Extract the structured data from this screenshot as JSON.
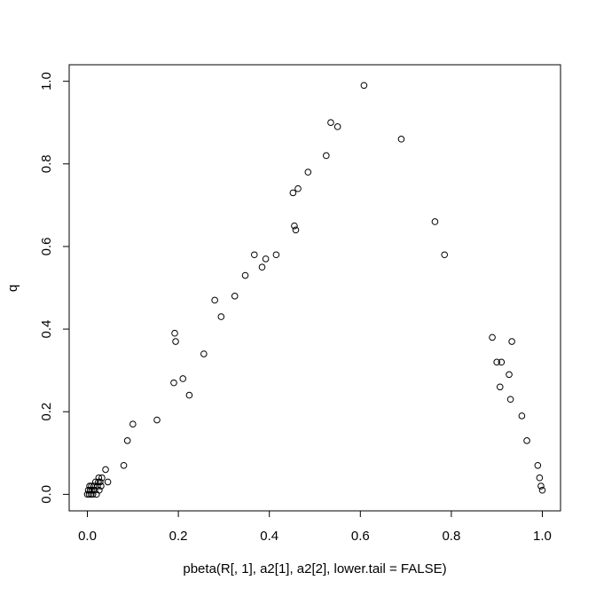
{
  "chart_data": {
    "type": "scatter",
    "title": "",
    "xlabel": "pbeta(R[, 1], a2[1], a2[2], lower.tail = FALSE)",
    "ylabel": "q",
    "xlim": [
      -0.04,
      1.04
    ],
    "ylim": [
      -0.04,
      1.04
    ],
    "xticks": [
      "0.0",
      "0.2",
      "0.4",
      "0.6",
      "0.8",
      "1.0"
    ],
    "yticks": [
      "0.0",
      "0.2",
      "0.4",
      "0.6",
      "0.8",
      "1.0"
    ],
    "xtick_values": [
      0,
      0.2,
      0.4,
      0.6,
      0.8,
      1.0
    ],
    "ytick_values": [
      0,
      0.2,
      0.4,
      0.6,
      0.8,
      1.0
    ],
    "grid": false,
    "marker": "open-circle",
    "color": "#000000",
    "points": [
      [
        0.0,
        0.0
      ],
      [
        0.002,
        0.01
      ],
      [
        0.004,
        0.0
      ],
      [
        0.005,
        0.02
      ],
      [
        0.006,
        0.01
      ],
      [
        0.008,
        0.0
      ],
      [
        0.009,
        0.02
      ],
      [
        0.01,
        0.01
      ],
      [
        0.012,
        0.0
      ],
      [
        0.014,
        0.02
      ],
      [
        0.016,
        0.01
      ],
      [
        0.018,
        0.03
      ],
      [
        0.02,
        0.0
      ],
      [
        0.022,
        0.02
      ],
      [
        0.024,
        0.03
      ],
      [
        0.025,
        0.04
      ],
      [
        0.026,
        0.01
      ],
      [
        0.028,
        0.03
      ],
      [
        0.03,
        0.02
      ],
      [
        0.032,
        0.04
      ],
      [
        0.04,
        0.06
      ],
      [
        0.045,
        0.03
      ],
      [
        0.08,
        0.07
      ],
      [
        0.088,
        0.13
      ],
      [
        0.1,
        0.17
      ],
      [
        0.153,
        0.18
      ],
      [
        0.19,
        0.27
      ],
      [
        0.192,
        0.39
      ],
      [
        0.194,
        0.37
      ],
      [
        0.21,
        0.28
      ],
      [
        0.224,
        0.24
      ],
      [
        0.256,
        0.34
      ],
      [
        0.28,
        0.47
      ],
      [
        0.294,
        0.43
      ],
      [
        0.324,
        0.48
      ],
      [
        0.347,
        0.53
      ],
      [
        0.367,
        0.58
      ],
      [
        0.384,
        0.55
      ],
      [
        0.392,
        0.57
      ],
      [
        0.415,
        0.58
      ],
      [
        0.452,
        0.73
      ],
      [
        0.455,
        0.65
      ],
      [
        0.458,
        0.64
      ],
      [
        0.463,
        0.74
      ],
      [
        0.485,
        0.78
      ],
      [
        0.525,
        0.82
      ],
      [
        0.535,
        0.9
      ],
      [
        0.55,
        0.89
      ],
      [
        0.608,
        0.99
      ],
      [
        0.69,
        0.86
      ],
      [
        0.764,
        0.66
      ],
      [
        0.785,
        0.58
      ],
      [
        0.89,
        0.38
      ],
      [
        0.9,
        0.32
      ],
      [
        0.907,
        0.26
      ],
      [
        0.91,
        0.32
      ],
      [
        0.927,
        0.29
      ],
      [
        0.93,
        0.23
      ],
      [
        0.933,
        0.37
      ],
      [
        0.955,
        0.19
      ],
      [
        0.966,
        0.13
      ],
      [
        0.99,
        0.07
      ],
      [
        0.994,
        0.04
      ],
      [
        0.997,
        0.02
      ],
      [
        1.0,
        0.01
      ]
    ]
  }
}
